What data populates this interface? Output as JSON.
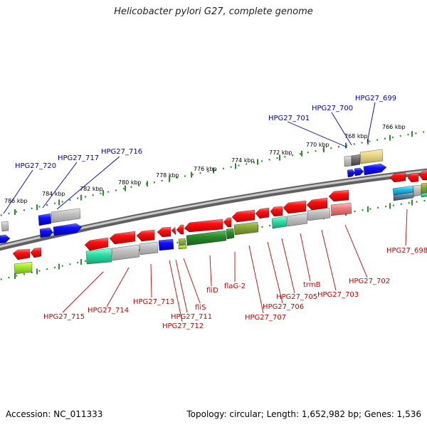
{
  "title": "Helicobacter pylori G27, complete genome",
  "accession_text": "Accession: NC_011333",
  "topology_text": "Topology: circular; Length: 1,652,982 bp; Genes: 1,536",
  "colors": {
    "backbone": "#8a8a8a",
    "dots": "#2e8b2e",
    "forward_label": "#0000bb",
    "reverse_label": "#cc0000",
    "gene_red": "#ee0000",
    "gene_blue": "#0000ee",
    "gene_grey": "#b8b8b8"
  },
  "ruler": {
    "ticks": [
      "786 kbp",
      "784 kbp",
      "782 kbp",
      "780 kbp",
      "778 kbp",
      "776 kbp",
      "774 kbp",
      "772 kbp",
      "770 kbp",
      "768 kbp",
      "766 kbp"
    ]
  },
  "forward_labels": [
    "HPG27_720",
    "HPG27_717",
    "HPG27_716",
    "HPG27_701",
    "HPG27_700",
    "HPG27_699"
  ],
  "reverse_labels": [
    "HPG27_715",
    "HPG27_714",
    "HPG27_713",
    "HPG27_712",
    "HPG27_711",
    "fliS",
    "fliD",
    "flaG-2",
    "HPG27_707",
    "HPG27_706",
    "HPG27_705",
    "trmB",
    "HPG27_703",
    "HPG27_702",
    "HPG27_698"
  ]
}
